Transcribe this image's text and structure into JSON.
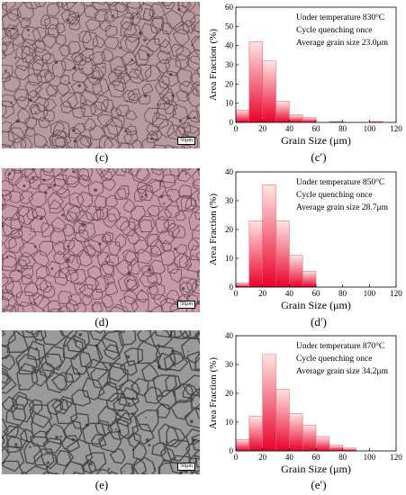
{
  "colors": {
    "bar_top": "#ffe4e4",
    "bar_bottom": "#e8002a",
    "bar_stroke": "#e06060",
    "micro_c": "#b89aa0",
    "micro_d": "#c79aa8",
    "micro_e": "#9a9a9a"
  },
  "panels": [
    {
      "micro_caption": "(c)",
      "chart_caption": "(c′)",
      "scale_label": "50μm",
      "tone": "c",
      "chart_data": {
        "type": "bar",
        "x": [
          5,
          15,
          25,
          35,
          45,
          55,
          65,
          75,
          85,
          95,
          105
        ],
        "values": [
          6.5,
          42,
          32,
          11,
          4,
          2.5,
          0,
          0.5,
          0,
          0,
          0.5
        ],
        "bin_width": 10,
        "xlim": [
          0,
          120
        ],
        "ylim": [
          0,
          60
        ],
        "xticks": [
          0,
          20,
          40,
          60,
          80,
          100,
          120
        ],
        "yticks": [
          0,
          10,
          20,
          30,
          40,
          50,
          60
        ],
        "xlabel": "Grain Size (μm)",
        "ylabel": "Area Fraction (%)",
        "annotations": [
          "Under temperature 830°C",
          "Cycle quenching once",
          "Average grain size 23.0μm"
        ]
      }
    },
    {
      "micro_caption": "(d)",
      "chart_caption": "(d′)",
      "scale_label": "50μm",
      "tone": "d",
      "chart_data": {
        "type": "bar",
        "x": [
          5,
          15,
          25,
          35,
          45,
          55
        ],
        "values": [
          1.5,
          23,
          35.5,
          23,
          11,
          5.5
        ],
        "bin_width": 10,
        "xlim": [
          0,
          120
        ],
        "ylim": [
          0,
          40
        ],
        "xticks": [
          0,
          20,
          40,
          60,
          80,
          100,
          120
        ],
        "yticks": [
          0,
          10,
          20,
          30,
          40
        ],
        "xlabel": "Grain Size (μm)",
        "ylabel": "Area Fraction (%)",
        "annotations": [
          "Under temperature 850°C",
          "Cycle quenching once",
          "Average grain size 28.7μm"
        ]
      }
    },
    {
      "micro_caption": "(e)",
      "chart_caption": "(e′)",
      "scale_label": "50μm",
      "tone": "e",
      "chart_data": {
        "type": "bar",
        "x": [
          5,
          15,
          25,
          35,
          45,
          55,
          65,
          75,
          85
        ],
        "values": [
          4,
          12,
          33.5,
          21.5,
          13,
          9,
          5,
          2,
          1
        ],
        "bin_width": 10,
        "xlim": [
          0,
          120
        ],
        "ylim": [
          0,
          40
        ],
        "xticks": [
          0,
          20,
          40,
          60,
          80,
          100,
          120
        ],
        "yticks": [
          0,
          10,
          20,
          30,
          40
        ],
        "xlabel": "Grain Size (μm)",
        "ylabel": "Area Fraction (%)",
        "annotations": [
          "Under temperature 870°C",
          "Cycle quenching once",
          "Average grain size 34.2μm"
        ]
      }
    }
  ]
}
